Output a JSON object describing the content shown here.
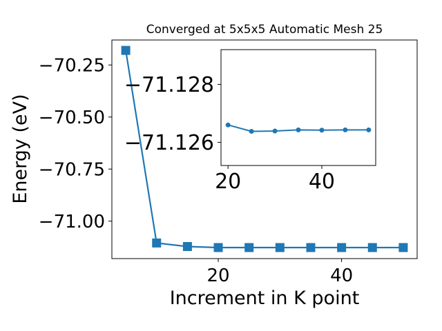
{
  "chart_data": [
    {
      "type": "line",
      "title": "Converged at 5x5x5 Automatic Mesh 25",
      "xlabel": "Increment in K point",
      "ylabel": "Energy (eV)",
      "x": [
        5,
        10,
        15,
        20,
        25,
        30,
        35,
        40,
        45,
        50
      ],
      "series": [
        {
          "values": [
            -70.18,
            -71.105,
            -71.122,
            -71.127,
            -71.127,
            -71.127,
            -71.127,
            -71.127,
            -71.127,
            -71.127
          ],
          "color": "#1f77b4",
          "marker": "square"
        }
      ],
      "xlim": [
        2.75,
        52.25
      ],
      "ylim": [
        -71.18,
        -70.13
      ],
      "xticks": [
        20,
        40
      ],
      "yticks": [
        -70.25,
        -70.5,
        -70.75,
        -71.0
      ],
      "ytick_labels": [
        "−70.25",
        "−70.50",
        "−70.75",
        "−71.00"
      ],
      "grid": false
    },
    {
      "type": "line",
      "title": "",
      "xlabel": "",
      "ylabel": "",
      "x": [
        20,
        25,
        30,
        35,
        40,
        45,
        50
      ],
      "series": [
        {
          "values": [
            -71.1266,
            -71.12638,
            -71.12639,
            -71.12643,
            -71.12642,
            -71.12643,
            -71.12643
          ],
          "color": "#1f77b4",
          "marker": "circle"
        }
      ],
      "xlim": [
        18.5,
        51.5
      ],
      "ylim": [
        -71.1252,
        -71.1292
      ],
      "xticks": [
        20,
        40
      ],
      "yticks": [
        -71.128,
        -71.126
      ],
      "ytick_labels": [
        "−71.128",
        "−71.126"
      ],
      "grid": false
    }
  ]
}
